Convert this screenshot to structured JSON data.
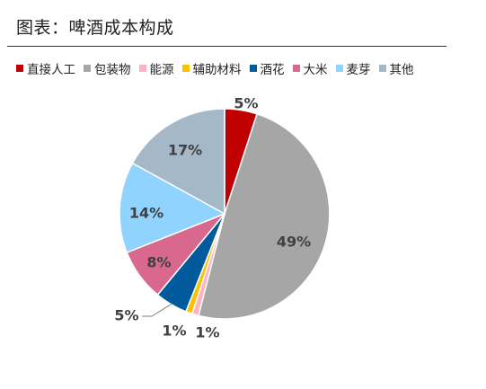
{
  "header": {
    "title": "图表：啤酒成本构成"
  },
  "chart_data": {
    "type": "pie",
    "title": "图表：啤酒成本构成",
    "legend_position": "top",
    "slices": [
      {
        "name": "直接人工",
        "value": 5,
        "label": "5%",
        "color": "#c00000"
      },
      {
        "name": "包装物",
        "value": 49,
        "label": "49%",
        "color": "#a6a6a6"
      },
      {
        "name": "能源",
        "value": 1,
        "label": "1%",
        "color": "#ffb3c1"
      },
      {
        "name": "辅助材料",
        "value": 1,
        "label": "1%",
        "color": "#ffc000"
      },
      {
        "name": "酒花",
        "value": 5,
        "label": "5%",
        "color": "#005a9c"
      },
      {
        "name": "大米",
        "value": 8,
        "label": "8%",
        "color": "#d9688f"
      },
      {
        "name": "麦芽",
        "value": 14,
        "label": "14%",
        "color": "#8fd3fe"
      },
      {
        "name": "其他",
        "value": 17,
        "label": "17%",
        "color": "#a5b8c8"
      }
    ]
  }
}
